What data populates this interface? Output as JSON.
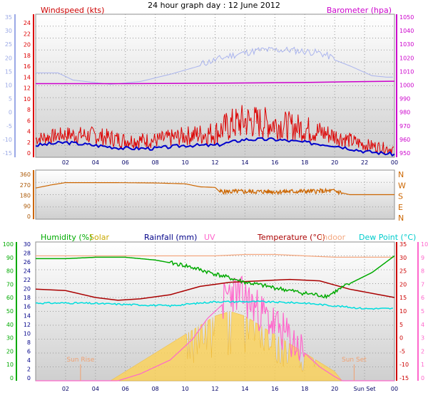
{
  "title": "24 hour graph day : 12 June 2012",
  "colors": {
    "wind": "#dd0000",
    "gust": "#0000cc",
    "baro": "#cc00cc",
    "baroLine": "#aab4ee",
    "dir": "#cc6600",
    "humidity": "#00aa00",
    "solar": "#ffd24d",
    "rainfall": "#000088",
    "uv": "#ff66cc",
    "temperature": "#aa0000",
    "indoor": "#f4a880",
    "dew": "#00dddd",
    "leftAxisBlue": "#9aa8e6"
  },
  "x_ticks": [
    "02",
    "04",
    "06",
    "08",
    "10",
    "12",
    "14",
    "16",
    "18",
    "20",
    "22",
    "00"
  ],
  "x_ticks_bottom": [
    "02",
    "04",
    "06",
    "08",
    "10",
    "12",
    "14",
    "16",
    "18",
    "20",
    "Sun Set",
    "00"
  ],
  "chart_data": [
    {
      "id": "wind",
      "type": "line",
      "labels": {
        "left": "Windspeed (kts)",
        "right": "Barometer (hpa)"
      },
      "axes": {
        "outer_left": {
          "ticks": [
            "35",
            "30",
            "25",
            "20",
            "15",
            "10",
            "5",
            "0",
            "-5",
            "-10",
            "-15"
          ],
          "range": [
            -15,
            35
          ]
        },
        "left": {
          "ticks": [
            "24",
            "22",
            "20",
            "18",
            "16",
            "14",
            "12",
            "10",
            "8",
            "6",
            "4",
            "2",
            "0"
          ],
          "range": [
            0,
            24
          ]
        },
        "right": {
          "ticks": [
            "1050",
            "1040",
            "1030",
            "1020",
            "1010",
            "1000",
            "990",
            "980",
            "970",
            "960",
            "950"
          ],
          "range": [
            950,
            1050
          ]
        }
      },
      "series": [
        {
          "key": "barometer",
          "values": [
            [
              0,
              1001.5
            ],
            [
              4,
              1001.5
            ],
            [
              6,
              1001.5
            ],
            [
              12,
              1001.8
            ],
            [
              18,
              1002.3
            ],
            [
              21,
              1002.8
            ],
            [
              24,
              1003.2
            ]
          ]
        },
        {
          "key": "barometer_blue",
          "values": [
            [
              0,
              14.5
            ],
            [
              1.5,
              14.5
            ],
            [
              2.5,
              12
            ],
            [
              5,
              10.5
            ],
            [
              7,
              11.5
            ],
            [
              9,
              14
            ],
            [
              11,
              17
            ],
            [
              13,
              20
            ],
            [
              15,
              22
            ],
            [
              17,
              22
            ],
            [
              19,
              21
            ],
            [
              21,
              17
            ],
            [
              22.5,
              13.5
            ],
            [
              23.5,
              13
            ],
            [
              24,
              13
            ]
          ]
        },
        {
          "key": "wind_speed_avg",
          "values": [
            [
              0,
              2
            ],
            [
              2,
              2.5
            ],
            [
              4,
              2
            ],
            [
              6,
              1.5
            ],
            [
              8,
              1.5
            ],
            [
              10,
              2
            ],
            [
              12,
              2
            ],
            [
              13,
              2.5
            ],
            [
              14,
              3
            ],
            [
              16,
              3
            ],
            [
              18,
              2.5
            ],
            [
              20,
              2
            ],
            [
              22,
              1
            ],
            [
              24,
              0.5
            ]
          ]
        },
        {
          "key": "wind_speed_peak",
          "values": [
            [
              0,
              3
            ],
            [
              2,
              4
            ],
            [
              4,
              4
            ],
            [
              6,
              3
            ],
            [
              8,
              3
            ],
            [
              10,
              4
            ],
            [
              12,
              5
            ],
            [
              13,
              7
            ],
            [
              14,
              8
            ],
            [
              16,
              7
            ],
            [
              18,
              6
            ],
            [
              20,
              4
            ],
            [
              22,
              2
            ],
            [
              24,
              1
            ]
          ]
        }
      ]
    },
    {
      "id": "direction",
      "type": "line",
      "axes": {
        "left": {
          "ticks": [
            "360",
            "270",
            "180",
            "90",
            "0"
          ],
          "range": [
            0,
            360
          ]
        },
        "right": {
          "ticks": [
            "N",
            "W",
            "S",
            "E",
            "N"
          ]
        }
      },
      "series": [
        {
          "key": "wind_direction",
          "values": [
            [
              0,
              235
            ],
            [
              1,
              260
            ],
            [
              2,
              280
            ],
            [
              3.5,
              280
            ],
            [
              5,
              280
            ],
            [
              8,
              277
            ],
            [
              10,
              270
            ],
            [
              11,
              245
            ],
            [
              12,
              240
            ],
            [
              12.3,
              205
            ],
            [
              16,
              205
            ],
            [
              20,
              210
            ],
            [
              21,
              180
            ],
            [
              24,
              180
            ]
          ]
        }
      ]
    },
    {
      "id": "climate",
      "type": "line",
      "labels": {
        "humidity": "Humidity (%)",
        "solar": "Solar",
        "rainfall": "Rainfall (mm)",
        "uv": "UV",
        "temperature": "Temperature (°C)",
        "indoor": "Indoor",
        "dew": "Dew Point (°C)",
        "sunrise": "Sun Rise",
        "sunset": "Sun Set"
      },
      "axes": {
        "humidity": {
          "ticks": [
            "100",
            "90",
            "80",
            "70",
            "60",
            "50",
            "40",
            "30",
            "20",
            "10",
            "0"
          ],
          "range": [
            0,
            100
          ]
        },
        "rainfall": {
          "ticks": [
            "30",
            "28",
            "26",
            "24",
            "22",
            "20",
            "18",
            "16",
            "14",
            "12",
            "10",
            "8",
            "6",
            "4",
            "2",
            "0"
          ],
          "range": [
            0,
            30
          ]
        },
        "temperature": {
          "ticks": [
            "35",
            "30",
            "25",
            "20",
            "15",
            "10",
            "5",
            "0",
            "-5",
            "-10",
            "-15"
          ],
          "range": [
            -15,
            35
          ]
        },
        "uv": {
          "ticks": [
            "10",
            "9",
            "8",
            "7",
            "6",
            "5",
            "4",
            "3",
            "2",
            "1",
            "0"
          ],
          "range": [
            0,
            10
          ]
        }
      },
      "sunrise_hour": 3.0,
      "sunset_hour": 21.3,
      "series": [
        {
          "key": "humidity",
          "values": [
            [
              0,
              88
            ],
            [
              2,
              88
            ],
            [
              4,
              89
            ],
            [
              6,
              89
            ],
            [
              8,
              87
            ],
            [
              10,
              83
            ],
            [
              12,
              77
            ],
            [
              14,
              71
            ],
            [
              16,
              67
            ],
            [
              18,
              63
            ],
            [
              19.5,
              61
            ],
            [
              21,
              70
            ],
            [
              22.5,
              78
            ],
            [
              24,
              90
            ]
          ]
        },
        {
          "key": "solar_area",
          "values": [
            [
              0,
              0
            ],
            [
              4,
              0
            ],
            [
              5,
              0
            ],
            [
              5.5,
              1
            ],
            [
              7,
              4
            ],
            [
              9,
              8
            ],
            [
              11,
              12
            ],
            [
              12,
              14
            ],
            [
              13,
              15
            ],
            [
              14,
              14
            ],
            [
              15,
              12
            ],
            [
              16,
              10
            ],
            [
              17,
              8
            ],
            [
              18,
              6
            ],
            [
              19,
              4
            ],
            [
              20,
              2
            ],
            [
              20.5,
              0
            ],
            [
              24,
              0
            ]
          ]
        },
        {
          "key": "uv_index",
          "values": [
            [
              0,
              0
            ],
            [
              5.5,
              0
            ],
            [
              7,
              0.5
            ],
            [
              9,
              1.5
            ],
            [
              10.5,
              3
            ],
            [
              11.5,
              4.5
            ],
            [
              12.5,
              5.5
            ],
            [
              13,
              6.5
            ],
            [
              14,
              6
            ],
            [
              15,
              5
            ],
            [
              16,
              4
            ],
            [
              17,
              3
            ],
            [
              18,
              2
            ],
            [
              19,
              1
            ],
            [
              20,
              0.3
            ],
            [
              20.5,
              0
            ],
            [
              24,
              0
            ]
          ]
        },
        {
          "key": "temperature",
          "values": [
            [
              0,
              18
            ],
            [
              2,
              17.5
            ],
            [
              4,
              15
            ],
            [
              5.5,
              14
            ],
            [
              7,
              14.5
            ],
            [
              9,
              16
            ],
            [
              11,
              19
            ],
            [
              13,
              20.5
            ],
            [
              15,
              21
            ],
            [
              17,
              21.5
            ],
            [
              19,
              21
            ],
            [
              21,
              18
            ],
            [
              23,
              16
            ],
            [
              24,
              15
            ]
          ]
        },
        {
          "key": "indoor_temperature",
          "values": [
            [
              0,
              30
            ],
            [
              6,
              30
            ],
            [
              10,
              30
            ],
            [
              12,
              30
            ],
            [
              14,
              30.5
            ],
            [
              16,
              30.5
            ],
            [
              18,
              30
            ],
            [
              20,
              29.5
            ],
            [
              22,
              29.5
            ],
            [
              24,
              29.5
            ]
          ]
        },
        {
          "key": "dew_point",
          "values": [
            [
              0,
              13
            ],
            [
              3,
              13
            ],
            [
              6,
              12.5
            ],
            [
              9,
              12
            ],
            [
              11,
              13
            ],
            [
              12,
              13.5
            ],
            [
              15,
              13.5
            ],
            [
              18,
              13
            ],
            [
              20,
              12
            ],
            [
              22,
              11
            ],
            [
              24,
              11
            ]
          ]
        }
      ]
    }
  ]
}
